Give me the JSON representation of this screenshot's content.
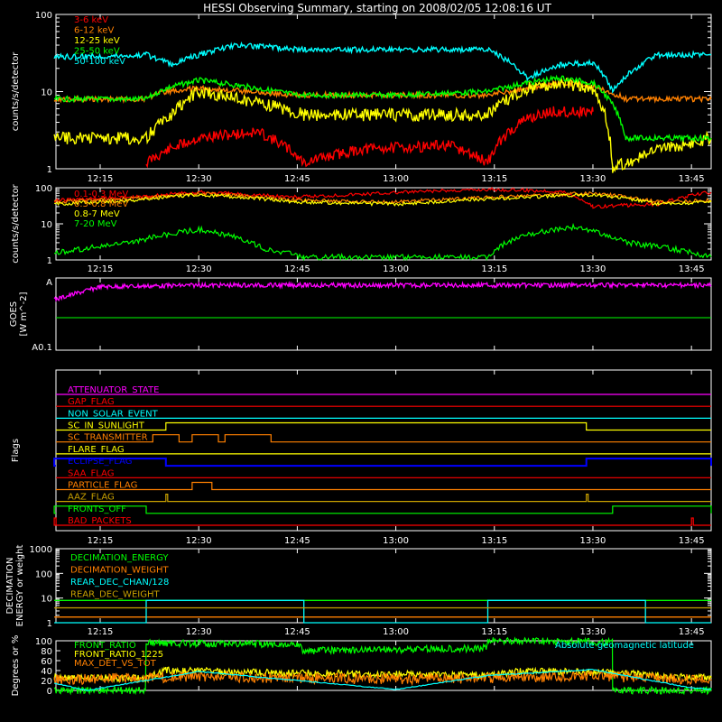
{
  "title": "HESSI Observing Summary, starting on 2008/02/05 12:08:16 UT",
  "colors": {
    "red": "#ff0000",
    "orange": "#ff8000",
    "yellow": "#ffff00",
    "green": "#00ff00",
    "cyan": "#00ffff",
    "magenta": "#ff00ff",
    "blue": "#0000ff",
    "olive": "#c8a000",
    "white": "#ffffff"
  },
  "chart_data": [
    {
      "type": "line",
      "ylabel": "counts/s/detector",
      "yscale": "log",
      "ylim": [
        1,
        100
      ],
      "yticks": [
        "1",
        "10",
        "100"
      ],
      "xlabels": [
        "12:15",
        "12:30",
        "12:45",
        "13:00",
        "13:15",
        "13:30",
        "13:45"
      ],
      "legend": [
        "3-6 keV",
        "6-12 keV",
        "12-25 keV",
        "25-50 keV",
        "50-100 keV"
      ],
      "series": [
        {
          "name": "3-6 keV",
          "color": "#ff0000",
          "x": [
            "12:22",
            "12:30",
            "12:39",
            "12:46",
            "12:55",
            "13:08",
            "13:14",
            "13:20",
            "13:24",
            "13:30"
          ],
          "y": [
            1.2,
            2.5,
            3.0,
            1.2,
            1.8,
            2.0,
            1.2,
            4.5,
            5.5,
            5.5
          ]
        },
        {
          "name": "6-12 keV",
          "color": "#ff8000",
          "x": [
            "12:08",
            "12:22",
            "12:25",
            "12:30",
            "12:45",
            "13:00",
            "13:14",
            "13:20",
            "13:25",
            "13:30",
            "13:35",
            "13:48"
          ],
          "y": [
            8,
            8,
            10,
            11,
            9,
            9,
            9,
            11,
            13,
            12,
            8,
            8
          ]
        },
        {
          "name": "12-25 keV",
          "color": "#ffff00",
          "x": [
            "12:08",
            "12:22",
            "12:26",
            "12:30",
            "12:40",
            "12:46",
            "13:00",
            "13:14",
            "13:20",
            "13:25",
            "13:30",
            "13:33",
            "13:48"
          ],
          "y": [
            2.5,
            2.5,
            5,
            10,
            7,
            5,
            5,
            5,
            11,
            13,
            11,
            1,
            2.5
          ]
        },
        {
          "name": "25-50 keV",
          "color": "#00ff00",
          "x": [
            "12:08",
            "12:22",
            "12:25",
            "12:30",
            "12:45",
            "13:00",
            "13:14",
            "13:20",
            "13:25",
            "13:30",
            "13:35",
            "13:48"
          ],
          "y": [
            8,
            8,
            11,
            14,
            9,
            9,
            10,
            13,
            15,
            13,
            2.5,
            2.5
          ]
        },
        {
          "name": "50-100 keV",
          "color": "#00ffff",
          "x": [
            "12:08",
            "12:22",
            "12:26",
            "12:30",
            "12:36",
            "12:46",
            "13:14",
            "13:20",
            "13:25",
            "13:30",
            "13:33",
            "13:40",
            "13:48"
          ],
          "y": [
            28,
            30,
            22,
            30,
            40,
            35,
            35,
            15,
            22,
            24,
            10,
            30,
            30
          ]
        }
      ]
    },
    {
      "type": "line",
      "ylabel": "counts/s/detector",
      "yscale": "log",
      "ylim": [
        1,
        100
      ],
      "yticks": [
        "1",
        "10",
        "100"
      ],
      "xlabels": [
        "12:15",
        "12:30",
        "12:45",
        "13:00",
        "13:15",
        "13:30",
        "13:45"
      ],
      "legend": [
        "0.1-0.3 MeV",
        "0.3-0.8 MeV",
        "0.8-7 MeV",
        "7-20 MeV"
      ],
      "series": [
        {
          "name": "0.1-0.3 MeV",
          "color": "#ff0000",
          "x": [
            "12:08",
            "12:20",
            "12:30",
            "12:45",
            "13:14",
            "13:25",
            "13:30",
            "13:40",
            "13:48"
          ],
          "y": [
            45,
            55,
            75,
            55,
            90,
            80,
            30,
            35,
            75
          ]
        },
        {
          "name": "0.3-0.8 MeV",
          "color": "#ff8000",
          "x": [
            "12:08",
            "12:20",
            "12:30",
            "12:45",
            "13:00",
            "13:20",
            "13:30",
            "13:40",
            "13:48"
          ],
          "y": [
            40,
            50,
            70,
            45,
            40,
            60,
            70,
            40,
            45
          ]
        },
        {
          "name": "0.8-7 MeV",
          "color": "#ffff00",
          "x": [
            "12:08",
            "12:20",
            "12:30",
            "12:45",
            "13:00",
            "13:20",
            "13:30",
            "13:40",
            "13:48"
          ],
          "y": [
            35,
            45,
            65,
            40,
            35,
            55,
            65,
            35,
            40
          ]
        },
        {
          "name": "7-20 MeV",
          "color": "#00ff00",
          "x": [
            "12:08",
            "12:20",
            "12:30",
            "12:40",
            "12:46",
            "13:14",
            "13:20",
            "13:27",
            "13:35",
            "13:48"
          ],
          "y": [
            1.5,
            3,
            7,
            2,
            1.2,
            1.2,
            5,
            8,
            3,
            1.2
          ]
        }
      ]
    },
    {
      "type": "line",
      "ylabel": "GOES [W m^-2]",
      "ylim": [
        "A0.1",
        "A"
      ],
      "series": [
        {
          "name": "",
          "color": "#ff00ff",
          "x": [
            "12:08",
            "12:15",
            "12:30",
            "12:45",
            "13:00",
            "13:15",
            "13:30",
            "13:45",
            "13:48"
          ],
          "y": [
            0.7,
            0.88,
            0.9,
            0.9,
            0.9,
            0.9,
            0.9,
            0.9,
            0.9
          ]
        },
        {
          "name": "",
          "color": "#00ff00",
          "x": [
            "12:08",
            "13:48"
          ],
          "y": [
            0.45,
            0.45
          ]
        }
      ]
    },
    {
      "type": "line",
      "ylabel": "Flags",
      "flags": [
        {
          "name": "ATTENUATOR_STATE",
          "color": "#ff00ff",
          "on": []
        },
        {
          "name": "GAP_FLAG",
          "color": "#ff0000",
          "on": []
        },
        {
          "name": "NON_SOLAR_EVENT",
          "color": "#00ffff",
          "on": []
        },
        {
          "name": "SC_IN_SUNLIGHT",
          "color": "#ffff00",
          "on": [
            [
              "12:25",
              "13:29"
            ]
          ]
        },
        {
          "name": "SC_TRANSMITTER",
          "color": "#ff8000",
          "on": [
            [
              "12:23",
              "12:27"
            ],
            [
              "12:29",
              "12:33"
            ],
            [
              "12:34",
              "12:41"
            ]
          ]
        },
        {
          "name": "FLARE_FLAG",
          "color": "#ffff00",
          "on": []
        },
        {
          "name": "ECLIPSE_FLAG",
          "color": "#0000ff",
          "on": [
            [
              "12:08",
              "12:25"
            ],
            [
              "13:29",
              "13:48"
            ]
          ]
        },
        {
          "name": "SAA_FLAG",
          "color": "#ff0000",
          "on": []
        },
        {
          "name": "PARTICLE_FLAG",
          "color": "#ff8000",
          "on": [
            [
              "12:29",
              "12:32"
            ]
          ]
        },
        {
          "name": "AAZ_FLAG",
          "color": "#c8a000",
          "on": [
            [
              "12:25",
              "12:25"
            ],
            [
              "13:29",
              "13:29"
            ]
          ]
        },
        {
          "name": "FRONTS_OFF",
          "color": "#00ff00",
          "on": [
            [
              "12:08",
              "12:22"
            ],
            [
              "13:33",
              "13:48"
            ]
          ]
        },
        {
          "name": "BAD_PACKETS",
          "color": "#ff0000",
          "on": [
            [
              "12:08",
              "12:08"
            ],
            [
              "13:45",
              "13:45"
            ]
          ]
        }
      ]
    },
    {
      "type": "line",
      "ylabel": "DECIMATION ENERGY or weight",
      "yscale": "log",
      "ylim": [
        1,
        1000
      ],
      "yticks": [
        "1",
        "10",
        "100",
        "1000"
      ],
      "legend": [
        "DECIMATION_ENERGY",
        "DECIMATION_WEIGHT",
        "REAR_DEC_CHAN/128",
        "REAR_DEC_WEIGHT"
      ],
      "series": [
        {
          "name": "DECIMATION_ENERGY",
          "color": "#00ff00",
          "x": [
            "12:08",
            "13:48"
          ],
          "y": [
            8,
            8
          ]
        },
        {
          "name": "DECIMATION_WEIGHT",
          "color": "#ff8000",
          "x": [
            "12:08",
            "13:48"
          ],
          "y": [
            1.7,
            1.7
          ]
        },
        {
          "name": "REAR_DEC_CHAN/128",
          "color": "#00ffff",
          "x": [
            "12:08",
            "12:22",
            "12:22",
            "12:46",
            "12:46",
            "13:14",
            "13:14",
            "13:38",
            "13:38",
            "13:48"
          ],
          "y": [
            1,
            1,
            8,
            8,
            1,
            1,
            8,
            8,
            1,
            1
          ]
        },
        {
          "name": "REAR_DEC_WEIGHT",
          "color": "#c8a000",
          "x": [
            "12:08",
            "13:48"
          ],
          "y": [
            4,
            4
          ]
        }
      ]
    },
    {
      "type": "line",
      "ylabel": "Degrees or %",
      "ylim": [
        0,
        100
      ],
      "yticks": [
        "0",
        "20",
        "40",
        "60",
        "80",
        "100"
      ],
      "legend": [
        "FRONT_RATIO",
        "FRONT_RATIO_1225",
        "MAX_DET_VS_TOT",
        "Absolute geomagnetic latitude"
      ],
      "series": [
        {
          "name": "FRONT_RATIO",
          "color": "#00ff00",
          "x": [
            "12:08",
            "12:22",
            "12:22",
            "12:45",
            "12:46",
            "13:14",
            "13:14",
            "13:33",
            "13:33",
            "13:48"
          ],
          "y": [
            0,
            0,
            95,
            93,
            80,
            85,
            100,
            97,
            0,
            0
          ]
        },
        {
          "name": "FRONT_RATIO_1225",
          "color": "#ffff00",
          "x": [
            "12:08",
            "12:22",
            "12:25",
            "12:45",
            "13:14",
            "13:20",
            "13:33",
            "13:48"
          ],
          "y": [
            25,
            25,
            40,
            35,
            30,
            40,
            35,
            25
          ]
        },
        {
          "name": "MAX_DET_VS_TOT",
          "color": "#ff8000",
          "x": [
            "12:08",
            "12:30",
            "12:45",
            "13:00",
            "13:15",
            "13:30",
            "13:48"
          ],
          "y": [
            22,
            28,
            25,
            23,
            25,
            28,
            22
          ]
        },
        {
          "name": "Absolute geomagnetic latitude",
          "color": "#00ffff",
          "x": [
            "12:08",
            "12:13",
            "12:30",
            "12:45",
            "13:00",
            "13:14",
            "13:30",
            "13:45",
            "13:48"
          ],
          "y": [
            15,
            0,
            38,
            20,
            2,
            30,
            42,
            5,
            3
          ]
        }
      ]
    }
  ]
}
